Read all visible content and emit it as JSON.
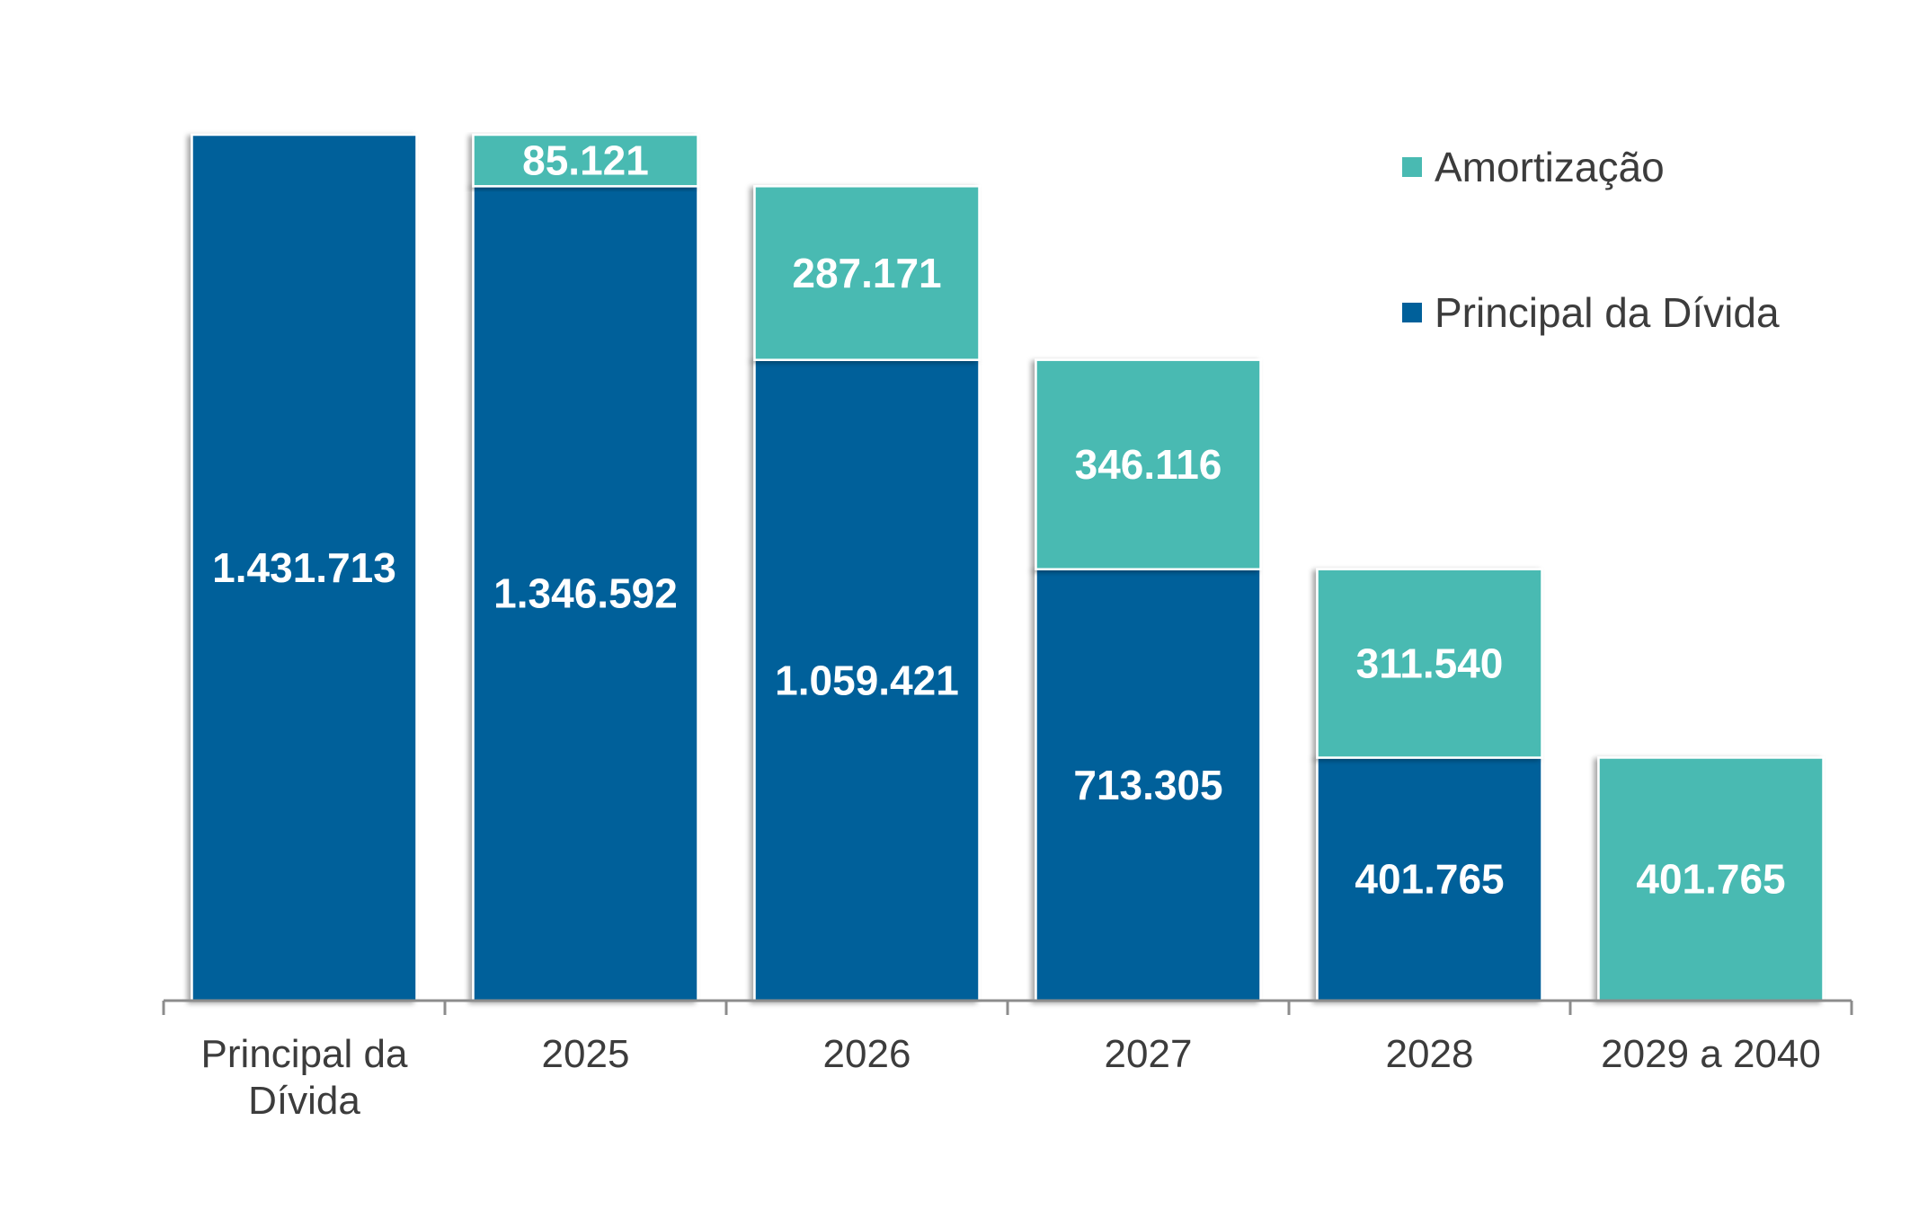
{
  "chart_data": {
    "type": "bar",
    "stacked": true,
    "categories": [
      [
        "Principal da",
        "Dívida"
      ],
      [
        "2025"
      ],
      [
        "2026"
      ],
      [
        "2027"
      ],
      [
        "2028"
      ],
      [
        "2029 a 2040"
      ]
    ],
    "series": [
      {
        "name": "Principal da Dívida",
        "color": "#00609a",
        "values": [
          1431713,
          1346592,
          1059421,
          713305,
          401765,
          0
        ],
        "labels": [
          "1.431.713",
          "1.346.592",
          "1.059.421",
          "713.305",
          "401.765",
          ""
        ]
      },
      {
        "name": "Amortização",
        "color": "#49bab2",
        "values": [
          0,
          85121,
          287171,
          346116,
          311540,
          401765
        ],
        "labels": [
          "",
          "85.121",
          "287.171",
          "346.116",
          "311.540",
          "401.765"
        ]
      }
    ],
    "legend_order": [
      1,
      0
    ],
    "legend_position": "top-right",
    "ylim": [
      0,
      1431713
    ],
    "grid": false,
    "title": "",
    "xlabel": "",
    "ylabel": ""
  }
}
